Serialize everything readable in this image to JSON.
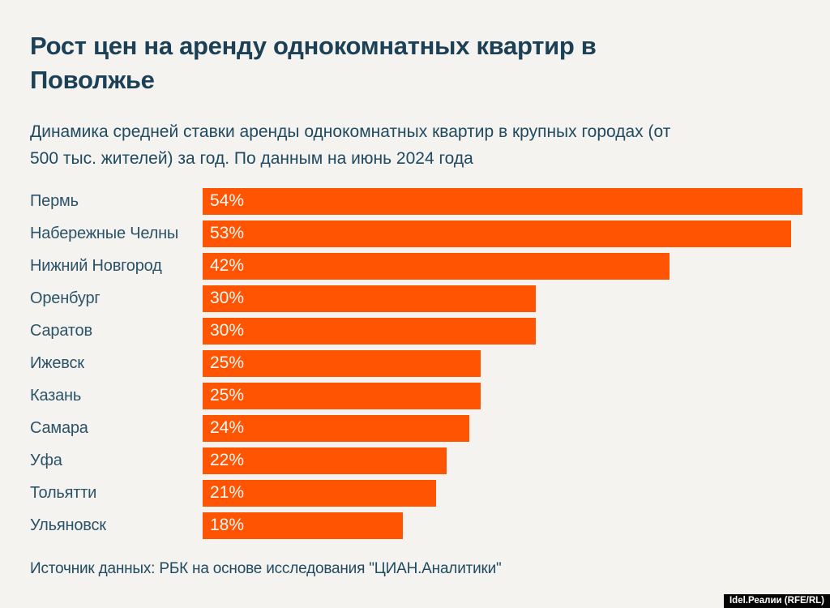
{
  "header": {
    "title": "Рост цен на аренду однокомнатных квартир в Поволжье",
    "title_line1": "Рост цен на аренду однокомнатных квартир в",
    "title_line2": "Поволжье",
    "subtitle_line1": "Динамика средней ставки аренды однокомнатных квартир в крупных городах (от",
    "subtitle_line2": "500 тыс. жителей) за год. По данным на июнь 2024 года"
  },
  "chart_data": {
    "type": "bar",
    "orientation": "horizontal",
    "title": "Рост цен на аренду однокомнатных квартир в Поволжье",
    "categories": [
      "Пермь",
      "Набережные Челны",
      "Нижний Новгород",
      "Оренбург",
      "Саратов",
      "Ижевск",
      "Казань",
      "Самара",
      "Уфа",
      "Тольятти",
      "Ульяновск"
    ],
    "values": [
      54,
      53,
      42,
      30,
      30,
      25,
      25,
      24,
      22,
      21,
      18
    ],
    "value_suffix": "%",
    "bar_labels": "inside-start",
    "xlabel": "",
    "ylabel": "",
    "xlim": [
      0,
      54
    ],
    "grid": false,
    "legend": null
  },
  "footer": {
    "source": "Источник данных: РБК на основе исследования \"ЦИАН.Аналитики\"",
    "watermark": "Idel.Реалии (RFE/RL)"
  },
  "colors": {
    "accent_bar": "#FF5502",
    "title_text": "#1C4156",
    "label_text": "#2B5368",
    "bar_value_text": "#FCF7F3",
    "background": "#F5F3F0",
    "watermark_bg": "#050505",
    "watermark_text": "#FFFFFF"
  }
}
